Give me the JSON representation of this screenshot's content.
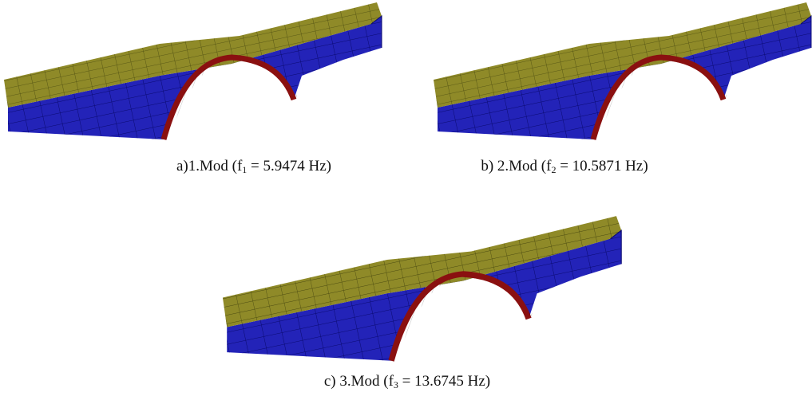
{
  "figures": [
    {
      "caption": {
        "prefix": "a)1.Mod (f",
        "sub": "1",
        "suffix": " = 5.9474 Hz)"
      }
    },
    {
      "caption": {
        "prefix": "b) 2.Mod (f",
        "sub": "2",
        "suffix": " = 10.5871 Hz)"
      }
    },
    {
      "caption": {
        "prefix": "c) 3.Mod (f",
        "sub": "3",
        "suffix": " = 13.6745 Hz)"
      }
    }
  ]
}
